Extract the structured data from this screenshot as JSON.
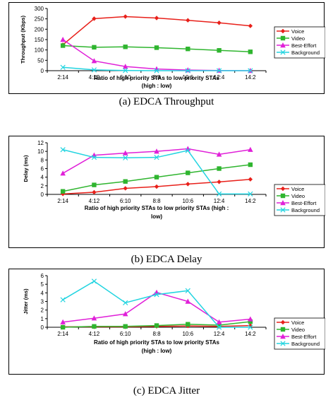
{
  "figure": {
    "captions": [
      "(a) EDCA Throughput",
      "(b) EDCA Delay",
      "(c) EDCA Jitter"
    ]
  },
  "colors": {
    "Voice": "#e8201a",
    "Video": "#2fb52f",
    "Best-Effort": "#e020d8",
    "Background": "#22d4e0"
  },
  "chart_data": [
    {
      "type": "line",
      "title": "",
      "xlabel": "Ratio of high priority STAs to low priority STAs (high : low)",
      "xlabel_lines": [
        "Ratio of high priority STAs to low priority STAs",
        "(high : low)"
      ],
      "ylabel": "Throughput (Kbps)",
      "categories": [
        "2:14",
        "4:12",
        "6:10",
        "8:8",
        "10:6",
        "12:4",
        "14:2"
      ],
      "ylim": [
        0,
        300
      ],
      "yticks": [
        0,
        50,
        100,
        150,
        200,
        250,
        300
      ],
      "legend_position": "right",
      "series": [
        {
          "name": "Voice",
          "marker": "diamond",
          "values": [
            125,
            251,
            261,
            254,
            243,
            231,
            216
          ]
        },
        {
          "name": "Video",
          "marker": "square",
          "values": [
            121,
            113,
            115,
            111,
            105,
            98,
            91
          ]
        },
        {
          "name": "Best-Effort",
          "marker": "triangle",
          "values": [
            150,
            47,
            20,
            8,
            3,
            1,
            0
          ]
        },
        {
          "name": "Background",
          "marker": "x",
          "values": [
            16,
            4,
            1,
            0,
            0,
            0,
            0
          ]
        }
      ]
    },
    {
      "type": "line",
      "title": "",
      "xlabel": "Ratio of high priority STAs to low priority STAs (high : low)",
      "xlabel_lines": [
        "Ratio of high priority STAs to low priority STAs (high :",
        "low)"
      ],
      "ylabel": "Delay (ms)",
      "categories": [
        "2:14",
        "4:12",
        "6:10",
        "8:8",
        "10:6",
        "12:4",
        "14:2"
      ],
      "ylim": [
        0,
        12
      ],
      "yticks": [
        0,
        2,
        4,
        6,
        8,
        10,
        12
      ],
      "legend_position": "right",
      "series": [
        {
          "name": "Voice",
          "marker": "diamond",
          "values": [
            0.1,
            0.5,
            1.4,
            1.8,
            2.4,
            2.9,
            3.5
          ]
        },
        {
          "name": "Video",
          "marker": "square",
          "values": [
            0.7,
            2.2,
            3.0,
            4.0,
            5.0,
            6.0,
            6.9
          ]
        },
        {
          "name": "Best-Effort",
          "marker": "triangle",
          "values": [
            4.9,
            9.1,
            9.6,
            10.0,
            10.6,
            9.3,
            10.4
          ]
        },
        {
          "name": "Background",
          "marker": "x",
          "values": [
            10.4,
            8.6,
            8.5,
            8.6,
            10.2,
            0.1,
            0.1
          ]
        }
      ]
    },
    {
      "type": "line",
      "title": "",
      "xlabel": "Ratio of high priority STAs to low priority STAs (high : low)",
      "xlabel_lines": [
        "Ratio of high priority STAs to low priority STAs",
        "(high : low)"
      ],
      "ylabel": "Jitter (ms)",
      "categories": [
        "2:14",
        "4:12",
        "6:10",
        "8:8",
        "10:6",
        "12:4",
        "14:2"
      ],
      "ylim": [
        0,
        6
      ],
      "yticks": [
        0,
        1,
        2,
        3,
        4,
        5,
        6
      ],
      "legend_position": "right",
      "series": [
        {
          "name": "Voice",
          "marker": "diamond",
          "values": [
            0.05,
            0.05,
            0.05,
            0.1,
            0.15,
            0.1,
            0.2
          ]
        },
        {
          "name": "Video",
          "marker": "square",
          "values": [
            0.0,
            0.1,
            0.1,
            0.2,
            0.35,
            0.25,
            0.65
          ]
        },
        {
          "name": "Best-Effort",
          "marker": "triangle",
          "values": [
            0.6,
            1.05,
            1.55,
            4.05,
            3.0,
            0.6,
            0.95
          ]
        },
        {
          "name": "Background",
          "marker": "x",
          "values": [
            3.2,
            5.35,
            2.85,
            3.8,
            4.25,
            0.0,
            0.0
          ]
        }
      ]
    }
  ]
}
